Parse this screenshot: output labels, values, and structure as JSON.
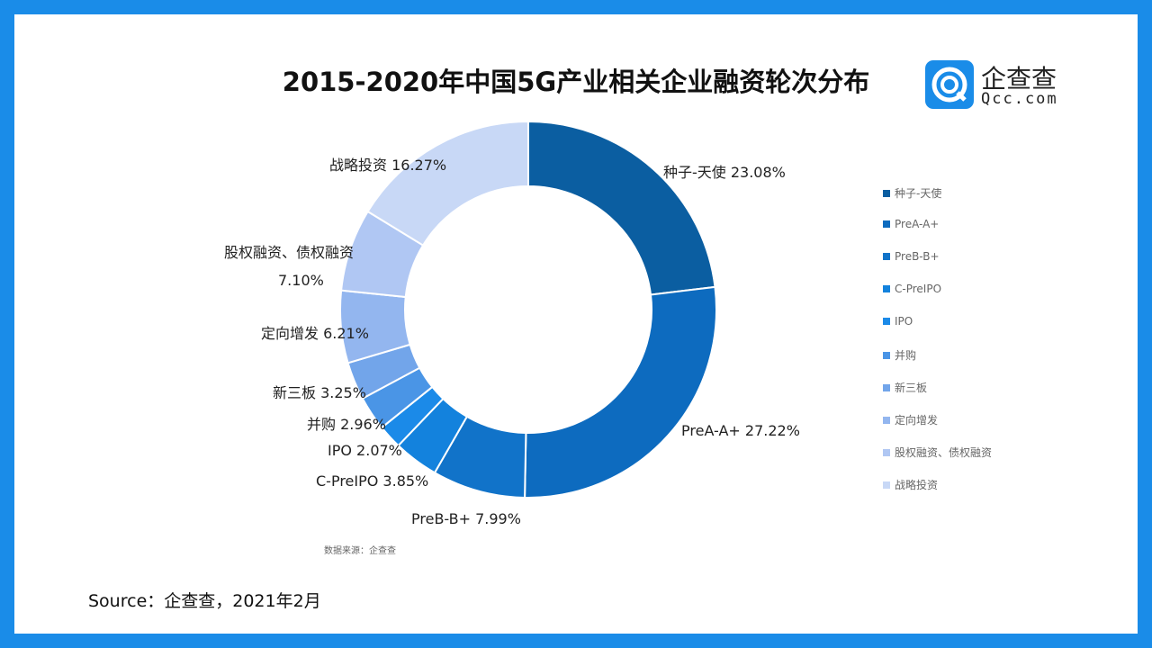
{
  "title": "2015-2020年中国5G产业相关企业融资轮次分布",
  "logo": {
    "cn": "企查查",
    "en": "Qcc.com"
  },
  "chart_data": {
    "type": "pie",
    "donut": true,
    "categories": [
      "种子-天使",
      "PreA-A+",
      "PreB-B+",
      "C-PreIPO",
      "IPO",
      "并购",
      "新三板",
      "定向增发",
      "股权融资、债权融资",
      "战略投资"
    ],
    "values": [
      23.08,
      27.22,
      7.99,
      3.85,
      2.07,
      2.96,
      3.25,
      6.21,
      7.1,
      16.27
    ],
    "labels": [
      "种子-天使 23.08%",
      "PreA-A+ 27.22%",
      "PreB-B+ 7.99%",
      "C-PreIPO 3.85%",
      "IPO 2.07%",
      "并购 2.96%",
      "新三板 3.25%",
      "定向增发 6.21%",
      "股权融资、债权融资",
      "战略投资 16.27%"
    ],
    "extra_label": "7.10%",
    "colors": [
      "#0b5ea1",
      "#0d6bbf",
      "#1173c9",
      "#1382dd",
      "#1b8ae8",
      "#4a95e6",
      "#72a5ea",
      "#93b6ef",
      "#b0c7f3",
      "#c8d8f6"
    ],
    "legend_position": "right"
  },
  "data_source_small": "数据来源：企查查",
  "source": "Source：企查查，2021年2月"
}
